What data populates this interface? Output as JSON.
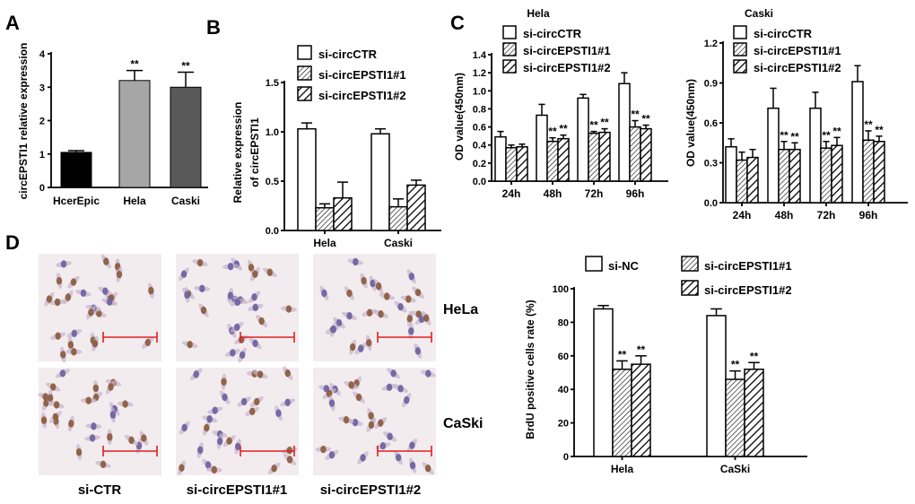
{
  "colors": {
    "bar_ctr": "#ffffff",
    "stroke": "#000000",
    "scale_bar": "#e02020",
    "tissue_bg": "#f2ecef"
  },
  "chart_data": [
    {
      "panel": "A",
      "type": "bar",
      "title": "",
      "ylabel": "circEPSTI1 relative expression",
      "xlabel": "",
      "ylim": [
        0,
        4
      ],
      "yticks": [
        0,
        1,
        2,
        3,
        4
      ],
      "categories": [
        "HcerEpic",
        "Hela",
        "Caski"
      ],
      "values": [
        1.05,
        3.2,
        3.0
      ],
      "errors": [
        0.05,
        0.3,
        0.45
      ],
      "colors": [
        "#000000",
        "#a6a6a6",
        "#595959"
      ],
      "significance": [
        "",
        "**",
        "**"
      ]
    },
    {
      "panel": "B",
      "type": "bar",
      "title": "",
      "ylabel_line1": "Relative expression",
      "ylabel_line2": "of circEPSTI1",
      "ylim": [
        0,
        1.5
      ],
      "yticks": [
        "0.0",
        "0.5",
        "1.0",
        "1.5"
      ],
      "categories": [
        "Hela",
        "Caski"
      ],
      "series": [
        {
          "name": "si-circCTR",
          "pattern": "white",
          "values": [
            1.03,
            0.98
          ],
          "errors": [
            0.06,
            0.05
          ]
        },
        {
          "name": "si-circEPSTI1#1",
          "pattern": "diag-thin",
          "values": [
            0.23,
            0.24
          ],
          "errors": [
            0.04,
            0.08
          ]
        },
        {
          "name": "si-circEPSTI1#2",
          "pattern": "diag-thick",
          "values": [
            0.33,
            0.46
          ],
          "errors": [
            0.16,
            0.05
          ]
        }
      ]
    },
    {
      "panel": "C",
      "type": "bar",
      "title": "Hela",
      "ylabel": "OD value(450nm)",
      "ylim": [
        0,
        1.4
      ],
      "yticks": [
        "0.0",
        "0.2",
        "0.4",
        "0.6",
        "0.8",
        "1.0",
        "1.2",
        "1.4"
      ],
      "categories": [
        "24h",
        "48h",
        "72h",
        "96h"
      ],
      "series": [
        {
          "name": "si-circCTR",
          "pattern": "white",
          "values": [
            0.49,
            0.73,
            0.92,
            1.08
          ],
          "errors": [
            0.06,
            0.12,
            0.04,
            0.12
          ],
          "significance": [
            "",
            "",
            "",
            ""
          ]
        },
        {
          "name": "si-circEPSTI1#1",
          "pattern": "diag-thin",
          "values": [
            0.37,
            0.44,
            0.53,
            0.6
          ],
          "errors": [
            0.03,
            0.04,
            0.02,
            0.07
          ],
          "significance": [
            "",
            "**",
            "**",
            "**"
          ]
        },
        {
          "name": "si-circEPSTI1#2",
          "pattern": "diag-thick",
          "values": [
            0.38,
            0.47,
            0.54,
            0.58
          ],
          "errors": [
            0.03,
            0.04,
            0.04,
            0.04
          ],
          "significance": [
            "",
            "**",
            "**",
            "**"
          ]
        }
      ]
    },
    {
      "panel": "C",
      "type": "bar",
      "title": "Caski",
      "ylabel": "OD value(450nm)",
      "ylim": [
        0,
        1.2
      ],
      "yticks": [
        "0.0",
        "0.3",
        "0.6",
        "0.9",
        "1.2"
      ],
      "categories": [
        "24h",
        "48h",
        "72h",
        "96h"
      ],
      "series": [
        {
          "name": "si-circCTR",
          "pattern": "white",
          "values": [
            0.42,
            0.71,
            0.71,
            0.91
          ],
          "errors": [
            0.06,
            0.15,
            0.12,
            0.12
          ],
          "significance": [
            "",
            "",
            "",
            ""
          ]
        },
        {
          "name": "si-circEPSTI1#1",
          "pattern": "diag-thin",
          "values": [
            0.32,
            0.4,
            0.41,
            0.47
          ],
          "errors": [
            0.06,
            0.06,
            0.05,
            0.07
          ],
          "significance": [
            "",
            "**",
            "**",
            "**"
          ]
        },
        {
          "name": "si-circEPSTI1#2",
          "pattern": "diag-thick",
          "values": [
            0.34,
            0.4,
            0.43,
            0.46
          ],
          "errors": [
            0.06,
            0.05,
            0.06,
            0.04
          ],
          "significance": [
            "",
            "**",
            "**",
            "**"
          ]
        }
      ]
    },
    {
      "panel": "D",
      "type": "bar",
      "title": "",
      "ylabel": "BrdU positive cells rate (%)",
      "ylim": [
        0,
        100
      ],
      "yticks": [
        "0",
        "20",
        "40",
        "60",
        "80",
        "100"
      ],
      "categories": [
        "Hela",
        "CaSki"
      ],
      "series": [
        {
          "name": "si-NC",
          "pattern": "white",
          "values": [
            88,
            84
          ],
          "errors": [
            2,
            4
          ],
          "significance": [
            "",
            ""
          ]
        },
        {
          "name": "si-circEPSTI1#1",
          "pattern": "diag-thin",
          "values": [
            52,
            46
          ],
          "errors": [
            5,
            5
          ],
          "significance": [
            "**",
            "**"
          ]
        },
        {
          "name": "si-circEPSTI1#2",
          "pattern": "diag-thick",
          "values": [
            55,
            52
          ],
          "errors": [
            5,
            4
          ],
          "significance": [
            "**",
            "**"
          ]
        }
      ]
    }
  ],
  "panel_labels": {
    "a": "A",
    "b": "B",
    "c": "C",
    "d": "D"
  },
  "micrographs": {
    "row_labels": [
      "HeLa",
      "CaSki"
    ],
    "col_labels": [
      "si-CTR",
      "si-circEPSTI1#1",
      "si-circEPSTI1#2"
    ]
  }
}
